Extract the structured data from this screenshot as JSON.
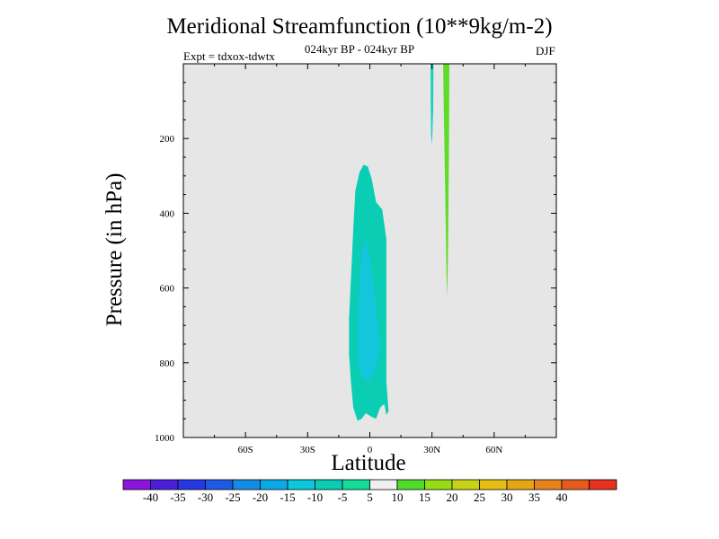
{
  "chart_data": {
    "type": "heatmap",
    "title": "Meridional Streamfunction (10**9kg/m-2)",
    "subtitle": "024kyr BP - 024kyr BP",
    "experiment": "Expt = tdxox-tdwtx",
    "season": "DJF",
    "xlabel": "Latitude",
    "ylabel": "Pressure (in hPa)",
    "xlim": [
      -90,
      90
    ],
    "ylim": [
      1000,
      0
    ],
    "x_ticks": [
      {
        "value": -60,
        "label": "60S"
      },
      {
        "value": -30,
        "label": "30S"
      },
      {
        "value": 0,
        "label": "0"
      },
      {
        "value": 30,
        "label": "30N"
      },
      {
        "value": 60,
        "label": "60N"
      }
    ],
    "y_ticks": [
      {
        "value": 200,
        "label": "200"
      },
      {
        "value": 400,
        "label": "400"
      },
      {
        "value": 600,
        "label": "600"
      },
      {
        "value": 800,
        "label": "800"
      },
      {
        "value": 1000,
        "label": "1000"
      }
    ],
    "background_color": "#e6e6e6",
    "colorbar": {
      "labels": [
        "-40",
        "-35",
        "-30",
        "-25",
        "-20",
        "-15",
        "-10",
        "-5",
        "5",
        "10",
        "15",
        "20",
        "25",
        "30",
        "35",
        "40"
      ],
      "colors": [
        "#8c14dc",
        "#4b1edc",
        "#2837e6",
        "#1e5ae6",
        "#148ce6",
        "#0aaae6",
        "#0ac8dc",
        "#0acdb4",
        "#14dc9b",
        "#f0f0f0",
        "#50dc28",
        "#96dc14",
        "#c8d214",
        "#e6be14",
        "#e6a514",
        "#e6821e",
        "#e65a1e",
        "#e6321e"
      ]
    },
    "contours": [
      {
        "name": "eq-outer",
        "level": -10,
        "color": "#0acdb4",
        "points": [
          [
            -6,
            955
          ],
          [
            -8,
            920
          ],
          [
            -9,
            860
          ],
          [
            -10,
            780
          ],
          [
            -10,
            680
          ],
          [
            -9,
            560
          ],
          [
            -8,
            440
          ],
          [
            -7,
            340
          ],
          [
            -5,
            290
          ],
          [
            -3,
            270
          ],
          [
            -1,
            275
          ],
          [
            1,
            310
          ],
          [
            3,
            370
          ],
          [
            6,
            390
          ],
          [
            8,
            470
          ],
          [
            8,
            560
          ],
          [
            8,
            700
          ],
          [
            8,
            850
          ],
          [
            9,
            930
          ],
          [
            8,
            940
          ],
          [
            7,
            910
          ],
          [
            5,
            920
          ],
          [
            3,
            950
          ],
          [
            1,
            945
          ],
          [
            -2,
            935
          ],
          [
            -4,
            950
          ]
        ]
      },
      {
        "name": "eq-inner",
        "level": -15,
        "color": "#14c6dc",
        "points": [
          [
            -5,
            820
          ],
          [
            -6,
            780
          ],
          [
            -6,
            700
          ],
          [
            -5,
            600
          ],
          [
            -4,
            500
          ],
          [
            -2,
            470
          ],
          [
            0,
            520
          ],
          [
            2,
            600
          ],
          [
            4,
            700
          ],
          [
            5,
            760
          ],
          [
            3,
            815
          ],
          [
            1,
            840
          ],
          [
            -1,
            850
          ],
          [
            -3,
            840
          ]
        ]
      },
      {
        "name": "jet-30n",
        "level": -10,
        "color": "#14d2be",
        "points": [
          [
            29.3,
            0
          ],
          [
            30.7,
            0
          ],
          [
            30.6,
            120
          ],
          [
            30.2,
            190
          ],
          [
            29.9,
            218
          ],
          [
            29.6,
            190
          ],
          [
            29.4,
            120
          ]
        ]
      },
      {
        "name": "jet-37n",
        "level": 5,
        "color": "#5fdc28",
        "points": [
          [
            35.4,
            0
          ],
          [
            38.4,
            0
          ],
          [
            38.2,
            200
          ],
          [
            37.9,
            400
          ],
          [
            37.7,
            520
          ],
          [
            37.3,
            625
          ],
          [
            37.0,
            570
          ],
          [
            36.6,
            420
          ],
          [
            36.1,
            250
          ],
          [
            35.6,
            100
          ]
        ]
      }
    ]
  }
}
